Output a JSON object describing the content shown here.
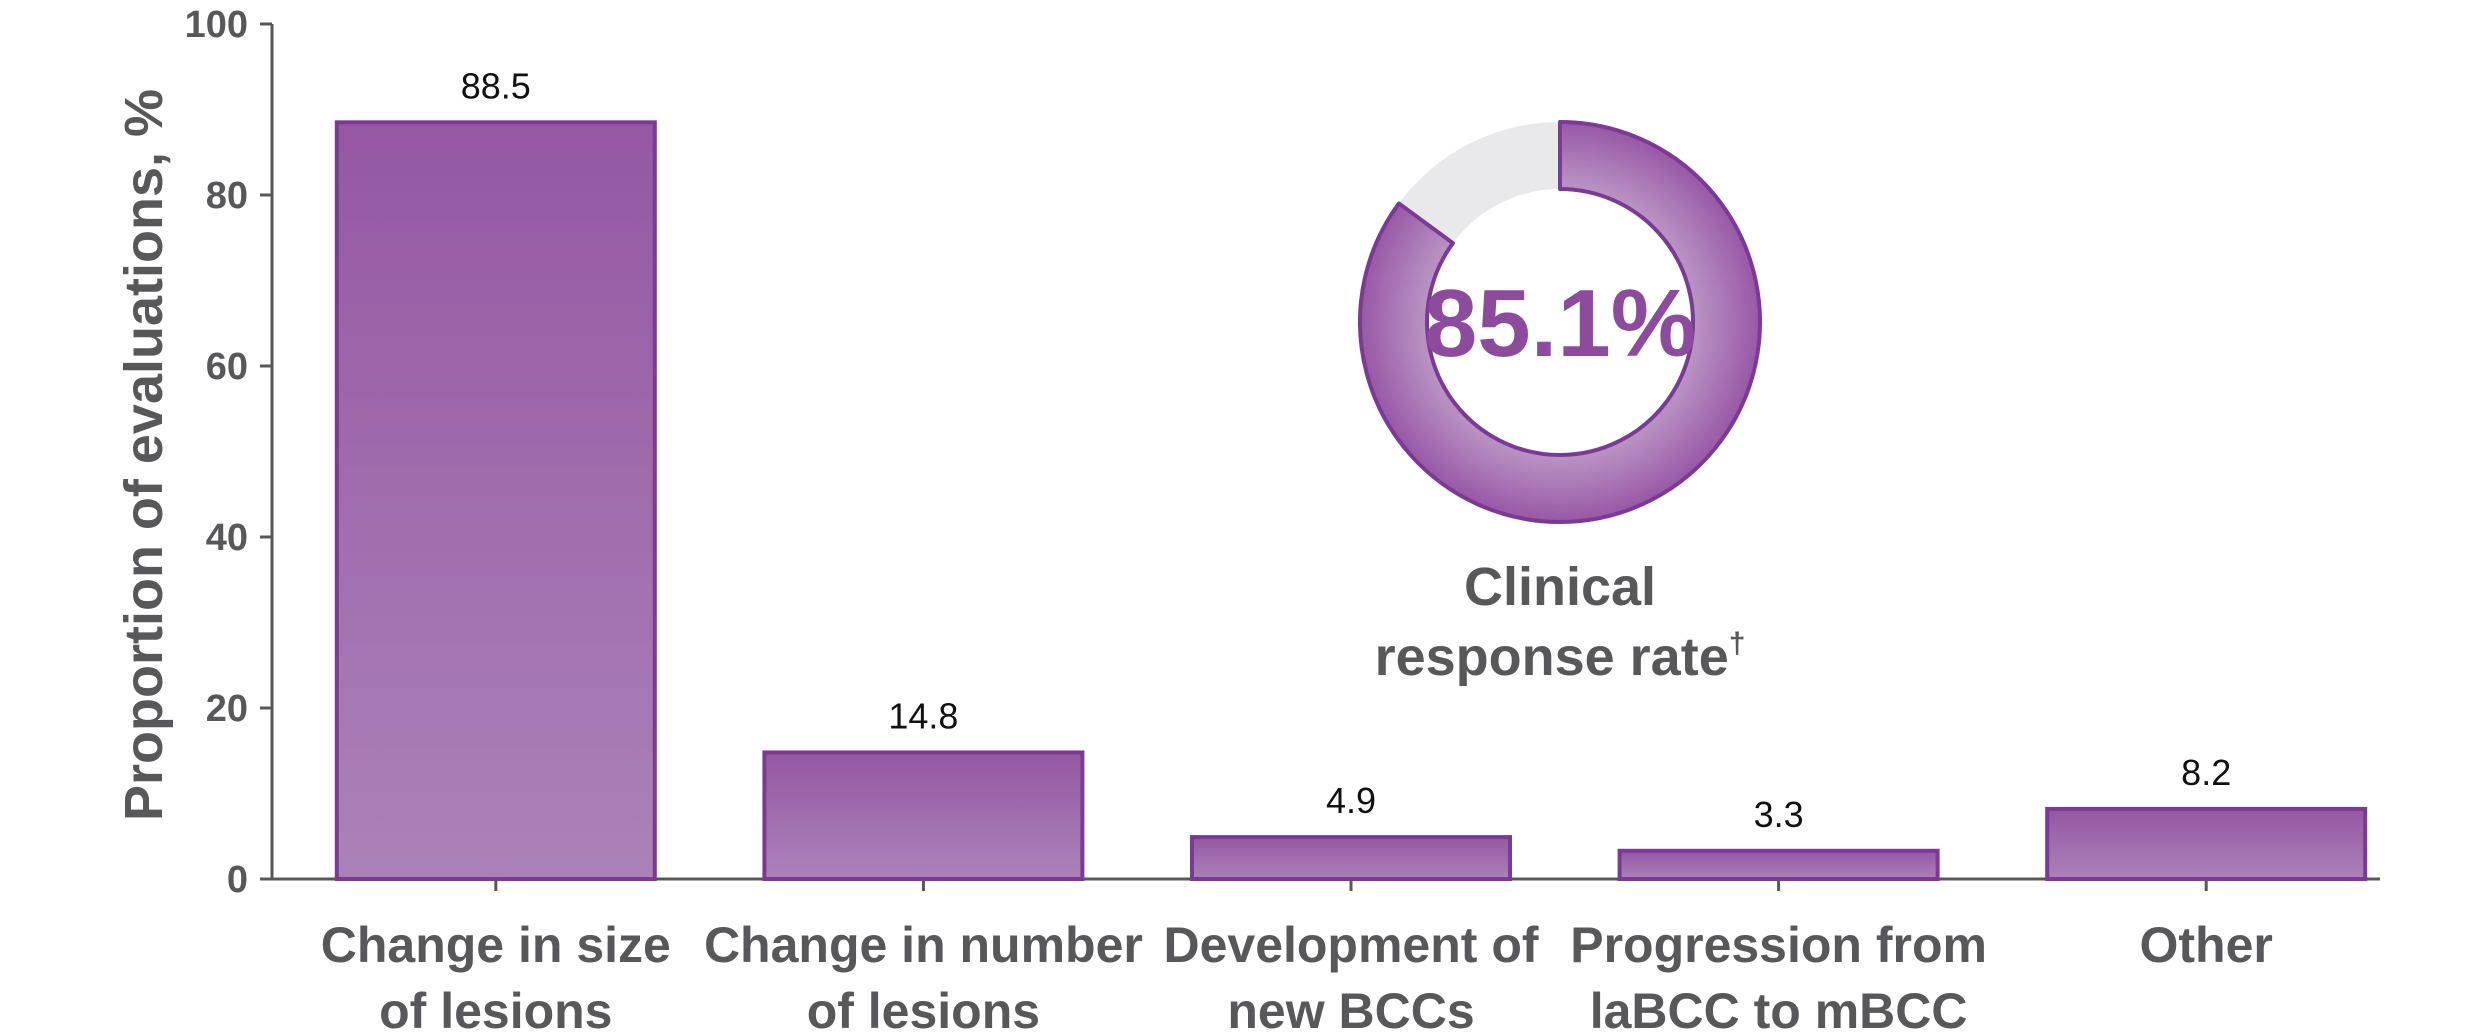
{
  "chart_data": {
    "type": "bar",
    "title": "",
    "ylabel": "Proportion of evaluations, %",
    "xlabel": "",
    "ylim": [
      0,
      100
    ],
    "yticks": [
      0,
      20,
      40,
      60,
      80,
      100
    ],
    "grid": false,
    "categories": [
      [
        "Change in size",
        "of lesions"
      ],
      [
        "Change in number",
        "of lesions"
      ],
      [
        "Development of",
        "new BCCs"
      ],
      [
        "Progression from",
        "laBCC to mBCC"
      ],
      [
        "Other"
      ]
    ],
    "values": [
      88.5,
      14.8,
      4.9,
      3.3,
      8.2
    ],
    "value_labels": [
      "88.5",
      "14.8",
      "4.9",
      "3.3",
      "8.2"
    ],
    "bar_color": "#9a5ba8",
    "bar_border_color": "#7b3a93",
    "annotation": {
      "type": "donut",
      "value": 85.1,
      "value_label": "85.1%",
      "caption_lines": [
        "Clinical",
        "response rate"
      ],
      "caption_superscript": "†",
      "fill_color": "#9a5ba8",
      "remainder_color": "#e9e9ec"
    }
  }
}
